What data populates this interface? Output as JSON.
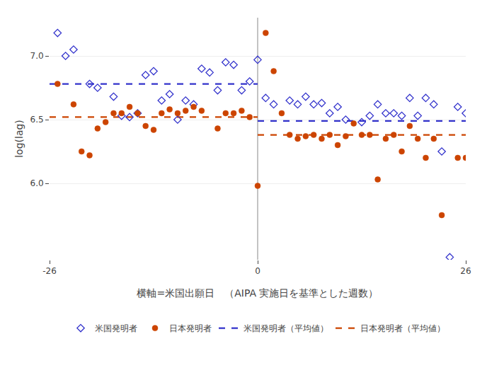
{
  "chart_data": {
    "type": "scatter",
    "xlabel": "横軸=米国出願日　（AIPA 実施日を基準とした週数）",
    "ylabel": "log(lag)",
    "xlim": [
      -26,
      26
    ],
    "xticks": [
      -26,
      0,
      26
    ],
    "ylim": [
      5.4,
      7.3
    ],
    "yticks": [
      {
        "value": 6.0,
        "label": "6.0"
      },
      6.5,
      {
        "value": 7.0,
        "label": "7.0"
      }
    ],
    "grid": "y",
    "legend": "bottom",
    "series": [
      {
        "name": "米国発明者",
        "type": "scatter",
        "marker": "diamond-open",
        "color": "#3333cc",
        "x": [
          -25,
          -24,
          -23,
          -21,
          -20,
          -18,
          -17,
          -16,
          -15,
          -14,
          -13,
          -12,
          -11,
          -10,
          -9,
          -8,
          -7,
          -6,
          -5,
          -4,
          -3,
          -2,
          -1,
          0,
          1,
          2,
          4,
          5,
          6,
          7,
          8,
          9,
          10,
          11,
          13,
          14,
          15,
          16,
          17,
          18,
          19,
          20,
          21,
          22,
          23,
          24,
          25,
          26
        ],
        "values": [
          7.18,
          7.0,
          7.05,
          6.78,
          6.75,
          6.68,
          6.53,
          6.52,
          6.55,
          6.85,
          6.88,
          6.65,
          6.7,
          6.5,
          6.65,
          6.62,
          6.9,
          6.87,
          6.73,
          6.95,
          6.93,
          6.73,
          6.8,
          6.97,
          6.67,
          6.62,
          6.65,
          6.62,
          6.68,
          6.62,
          6.63,
          6.55,
          6.6,
          6.5,
          6.48,
          6.53,
          6.62,
          6.55,
          6.55,
          6.53,
          6.67,
          6.53,
          6.67,
          6.62,
          6.25,
          5.42,
          6.6,
          6.55
        ]
      },
      {
        "name": "日本発明者",
        "type": "scatter",
        "marker": "circle",
        "color": "#cc4400",
        "x": [
          -25,
          -23,
          -22,
          -21,
          -20,
          -19,
          -18,
          -17,
          -16,
          -15,
          -14,
          -13,
          -12,
          -11,
          -10,
          -9,
          -8,
          -7,
          -5,
          -4,
          -3,
          -2,
          -1,
          0,
          1,
          2,
          3,
          4,
          5,
          6,
          7,
          8,
          9,
          10,
          11,
          12,
          13,
          14,
          15,
          16,
          17,
          18,
          19,
          20,
          21,
          22,
          23,
          25,
          26
        ],
        "values": [
          6.78,
          6.62,
          6.25,
          6.22,
          6.43,
          6.48,
          6.55,
          6.55,
          6.6,
          6.55,
          6.45,
          6.42,
          6.55,
          6.58,
          6.55,
          6.57,
          6.6,
          6.57,
          6.43,
          6.55,
          6.55,
          6.57,
          6.52,
          5.98,
          7.18,
          6.88,
          6.55,
          6.38,
          6.35,
          6.37,
          6.38,
          6.35,
          6.38,
          6.3,
          6.37,
          6.47,
          6.38,
          6.38,
          6.03,
          6.35,
          6.38,
          6.25,
          6.45,
          6.35,
          6.2,
          6.35,
          5.75,
          6.2,
          6.2
        ]
      },
      {
        "name": "米国発明者（平均値）",
        "type": "line",
        "line_style": "dash",
        "color": "#3333cc",
        "x": [
          -26,
          0,
          0,
          0,
          26
        ],
        "values": [
          6.78,
          6.78,
          null,
          6.49,
          6.49
        ]
      },
      {
        "name": "日本発明者（平均値）",
        "type": "line",
        "line_style": "dash",
        "color": "#cc4400",
        "x": [
          -26,
          0,
          0,
          0,
          26
        ],
        "values": [
          6.52,
          6.52,
          null,
          6.38,
          6.38
        ]
      },
      {
        "type": "line",
        "line_style": "solid",
        "color": "#888888",
        "x": [
          0,
          0
        ],
        "values": [
          5.4,
          7.3
        ]
      }
    ]
  }
}
